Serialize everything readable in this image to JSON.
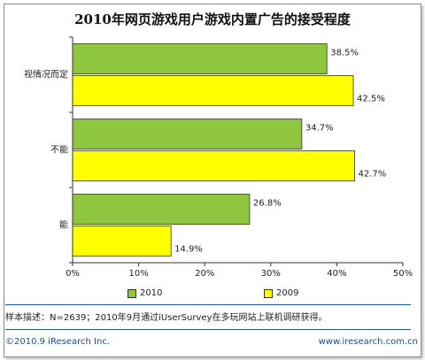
{
  "colors": {
    "series_2010": "#8ec63f",
    "series_2009": "#ffff00",
    "bar_stroke": "#333333",
    "axis": "#333333",
    "rule": "#1e5aa8",
    "footer": "#1f4e8c"
  },
  "chart_data": {
    "type": "bar",
    "orientation": "horizontal",
    "title": "2010年网页游戏用户游戏内置广告的接受程度",
    "categories": [
      "视情况而定",
      "不能",
      "能"
    ],
    "series": [
      {
        "name": "2010",
        "values": [
          38.5,
          34.7,
          26.8
        ],
        "labels": [
          "38.5%",
          "34.7%",
          "26.8%"
        ]
      },
      {
        "name": "2009",
        "values": [
          42.5,
          42.7,
          14.9
        ],
        "labels": [
          "42.5%",
          "42.7%",
          "14.9%"
        ]
      }
    ],
    "xlim": [
      0,
      50
    ],
    "xticks": [
      "0%",
      "10%",
      "20%",
      "30%",
      "40%",
      "50%"
    ],
    "grid": false,
    "legend_placement": "bottom"
  },
  "legend": {
    "items": [
      "2010",
      "2009"
    ]
  },
  "note": "样本描述：N=2639；2010年9月通过iUserSurvey在多玩网站上联机调研获得。",
  "footer": {
    "copyright": "©2010.9 iResearch Inc.",
    "website": "www.iresearch.com.cn"
  }
}
